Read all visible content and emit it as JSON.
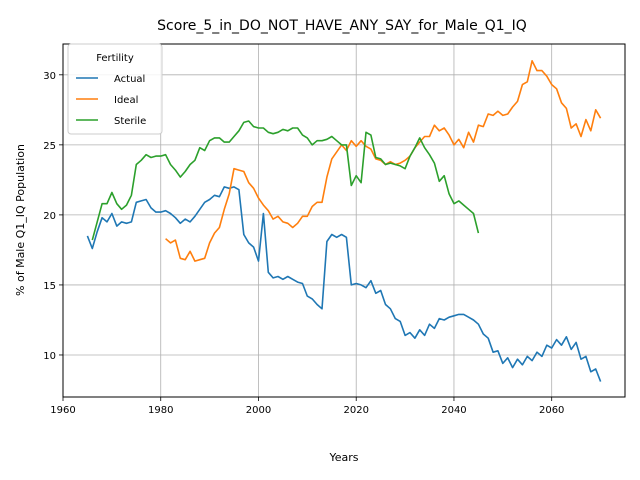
{
  "chart_data": {
    "type": "line",
    "title": "Score_5_in_DO_NOT_HAVE_ANY_SAY_for_Male_Q1_IQ",
    "xlabel": "Years",
    "ylabel": "% of Male Q1_IQ Population",
    "xlim": [
      1960,
      2075
    ],
    "ylim": [
      7,
      32.2
    ],
    "xticks": [
      1960,
      1980,
      2000,
      2020,
      2040,
      2060
    ],
    "xtick_labels": [
      "1960",
      "1980",
      "2000",
      "2020",
      "2040",
      "2060"
    ],
    "yticks": [
      10,
      15,
      20,
      25,
      30
    ],
    "ytick_labels": [
      "10",
      "15",
      "20",
      "25",
      "30"
    ],
    "grid": true,
    "legend": {
      "title": "Fertility",
      "position": "top-left"
    },
    "series": [
      {
        "name": "Actual",
        "color": "#1f77b4",
        "x": [
          1965,
          1966,
          1967,
          1968,
          1969,
          1970,
          1971,
          1972,
          1973,
          1974,
          1975,
          1976,
          1977,
          1978,
          1979,
          1980,
          1981,
          1982,
          1983,
          1984,
          1985,
          1986,
          1987,
          1988,
          1989,
          1990,
          1991,
          1992,
          1993,
          1994,
          1995,
          1996,
          1997,
          1998,
          1999,
          2000,
          2001,
          2002,
          2003,
          2004,
          2005,
          2006,
          2007,
          2008,
          2009,
          2010,
          2011,
          2012,
          2013,
          2014,
          2015,
          2016,
          2017,
          2018,
          2019,
          2020,
          2021,
          2022,
          2023,
          2024,
          2025,
          2026,
          2027,
          2028,
          2029,
          2030,
          2031,
          2032,
          2033,
          2034,
          2035,
          2036,
          2037,
          2038,
          2039,
          2040,
          2041,
          2042,
          2043,
          2044,
          2045,
          2046,
          2047,
          2048,
          2049,
          2050,
          2051,
          2052,
          2053,
          2054,
          2055,
          2056,
          2057,
          2058,
          2059,
          2060,
          2061,
          2062,
          2063,
          2064,
          2065,
          2066,
          2067,
          2068,
          2069,
          2070
        ],
        "y": [
          18.5,
          17.6,
          18.8,
          19.8,
          19.5,
          20.1,
          19.2,
          19.5,
          19.4,
          19.5,
          20.9,
          21.0,
          21.1,
          20.5,
          20.2,
          20.2,
          20.3,
          20.1,
          19.8,
          19.4,
          19.7,
          19.5,
          19.9,
          20.4,
          20.9,
          21.1,
          21.4,
          21.3,
          22.0,
          21.9,
          22.0,
          21.8,
          18.6,
          18.0,
          17.7,
          16.7,
          20.1,
          15.9,
          15.5,
          15.6,
          15.4,
          15.6,
          15.4,
          15.2,
          15.1,
          14.2,
          14.0,
          13.6,
          13.3,
          18.1,
          18.6,
          18.4,
          18.6,
          18.4,
          15.0,
          15.1,
          15.0,
          14.8,
          15.3,
          14.4,
          14.6,
          13.6,
          13.3,
          12.6,
          12.4,
          11.4,
          11.6,
          11.2,
          11.8,
          11.4,
          12.2,
          11.9,
          12.6,
          12.5,
          12.7,
          12.8,
          12.9,
          12.9,
          12.7,
          12.5,
          12.2,
          11.5,
          11.2,
          10.2,
          10.3,
          9.4,
          9.8,
          9.1,
          9.7,
          9.3,
          9.9,
          9.6,
          10.2,
          9.9,
          10.7,
          10.5,
          11.1,
          10.7,
          11.3,
          10.4,
          10.9,
          9.7,
          9.9,
          8.8,
          9.0,
          8.1
        ]
      },
      {
        "name": "Ideal",
        "color": "#ff7f0e",
        "x": [
          1981,
          1982,
          1983,
          1984,
          1985,
          1986,
          1987,
          1988,
          1989,
          1990,
          1991,
          1992,
          1993,
          1994,
          1995,
          1996,
          1997,
          1998,
          1999,
          2000,
          2001,
          2002,
          2003,
          2004,
          2005,
          2006,
          2007,
          2008,
          2009,
          2010,
          2011,
          2012,
          2013,
          2014,
          2015,
          2016,
          2017,
          2018,
          2019,
          2020,
          2021,
          2022,
          2023,
          2024,
          2025,
          2026,
          2027,
          2028,
          2029,
          2030,
          2031,
          2032,
          2033,
          2034,
          2035,
          2036,
          2037,
          2038,
          2039,
          2040,
          2041,
          2042,
          2043,
          2044,
          2045,
          2046,
          2047,
          2048,
          2049,
          2050,
          2051,
          2052,
          2053,
          2054,
          2055,
          2056,
          2057,
          2058,
          2059,
          2060,
          2061,
          2062,
          2063,
          2064,
          2065,
          2066,
          2067,
          2068,
          2069,
          2070
        ],
        "y": [
          18.3,
          18.0,
          18.2,
          16.9,
          16.8,
          17.4,
          16.7,
          16.8,
          16.9,
          18.0,
          18.7,
          19.1,
          20.4,
          21.5,
          23.3,
          23.2,
          23.1,
          22.3,
          21.9,
          21.2,
          20.7,
          20.3,
          19.7,
          19.9,
          19.5,
          19.4,
          19.1,
          19.4,
          19.9,
          19.9,
          20.6,
          20.9,
          20.9,
          22.7,
          24.0,
          24.5,
          25.0,
          24.6,
          25.3,
          24.9,
          25.3,
          24.9,
          24.7,
          24.0,
          23.9,
          23.6,
          23.8,
          23.6,
          23.7,
          23.9,
          24.2,
          24.8,
          25.2,
          25.6,
          25.6,
          26.4,
          26.0,
          26.2,
          25.7,
          25.0,
          25.4,
          24.8,
          25.9,
          25.2,
          26.4,
          26.3,
          27.2,
          27.1,
          27.4,
          27.1,
          27.2,
          27.7,
          28.1,
          29.3,
          29.5,
          31.0,
          30.3,
          30.3,
          29.9,
          29.3,
          29.0,
          28.0,
          27.6,
          26.2,
          26.5,
          25.6,
          26.8,
          26.0,
          27.5,
          26.9
        ]
      },
      {
        "name": "Sterile",
        "color": "#2ca02c",
        "x": [
          1966,
          1967,
          1968,
          1969,
          1970,
          1971,
          1972,
          1973,
          1974,
          1975,
          1976,
          1977,
          1978,
          1979,
          1980,
          1981,
          1982,
          1983,
          1984,
          1985,
          1986,
          1987,
          1988,
          1989,
          1990,
          1991,
          1992,
          1993,
          1994,
          1995,
          1996,
          1997,
          1998,
          1999,
          2000,
          2001,
          2002,
          2003,
          2004,
          2005,
          2006,
          2007,
          2008,
          2009,
          2010,
          2011,
          2012,
          2013,
          2014,
          2015,
          2016,
          2017,
          2018,
          2019,
          2020,
          2021,
          2022,
          2023,
          2024,
          2025,
          2026,
          2027,
          2028,
          2029,
          2030,
          2031,
          2032,
          2033,
          2034,
          2035,
          2036,
          2037,
          2038,
          2039,
          2040,
          2041,
          2042,
          2043,
          2044,
          2045
        ],
        "y": [
          18.2,
          19.5,
          20.8,
          20.8,
          21.6,
          20.8,
          20.4,
          20.7,
          21.4,
          23.6,
          23.9,
          24.3,
          24.1,
          24.2,
          24.2,
          24.3,
          23.6,
          23.2,
          22.7,
          23.1,
          23.6,
          23.9,
          24.8,
          24.6,
          25.3,
          25.5,
          25.5,
          25.2,
          25.2,
          25.6,
          26.0,
          26.6,
          26.7,
          26.3,
          26.2,
          26.2,
          25.9,
          25.8,
          25.9,
          26.1,
          26.0,
          26.2,
          26.2,
          25.7,
          25.5,
          25.0,
          25.3,
          25.3,
          25.4,
          25.6,
          25.3,
          25.0,
          25.0,
          22.1,
          22.8,
          22.3,
          25.9,
          25.7,
          24.1,
          24.0,
          23.6,
          23.7,
          23.6,
          23.5,
          23.3,
          24.2,
          24.8,
          25.5,
          24.8,
          24.3,
          23.7,
          22.4,
          22.8,
          21.5,
          20.8,
          21.0,
          20.7,
          20.4,
          20.1,
          18.7
        ]
      }
    ]
  }
}
